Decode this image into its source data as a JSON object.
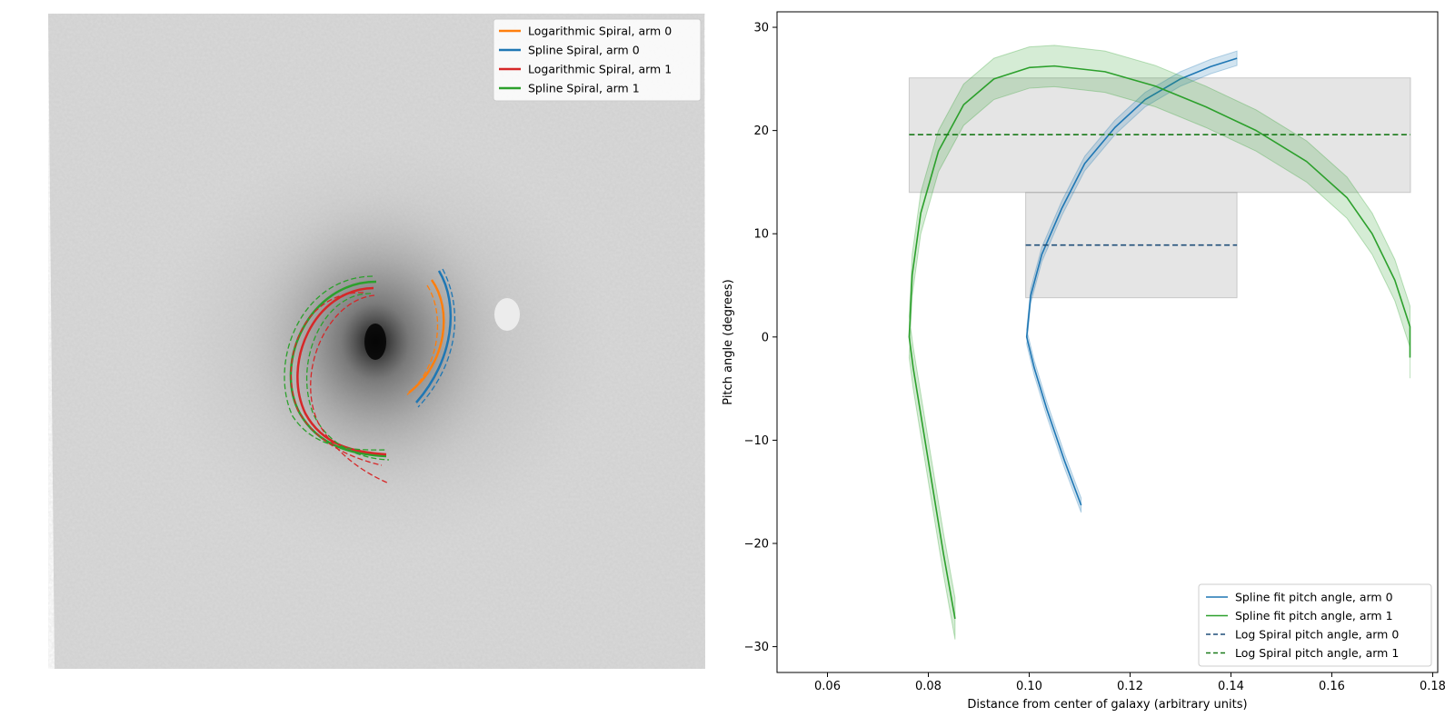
{
  "chart_data": [
    {
      "type": "image-overlay",
      "subject": "galaxy-grayscale-image",
      "legend": {
        "placement": "top-right",
        "entries": [
          {
            "label": "Logarithmic Spiral, arm 0",
            "color": "#ff7f0e"
          },
          {
            "label": "Spline Spiral, arm 0",
            "color": "#1f77b4"
          },
          {
            "label": "Logarithmic Spiral, arm 1",
            "color": "#d62728"
          },
          {
            "label": "Spline Spiral, arm 1",
            "color": "#2ca02c"
          }
        ]
      }
    },
    {
      "type": "line",
      "xlabel": "Distance from center of galaxy (arbitrary units)",
      "ylabel": "Pitch angle (degrees)",
      "xlim": [
        0.05,
        0.181
      ],
      "ylim": [
        -32.5,
        31.5
      ],
      "xticks": [
        "0.06",
        "0.08",
        "0.10",
        "0.12",
        "0.14",
        "0.16",
        "0.18"
      ],
      "xtick_values": [
        0.06,
        0.08,
        0.1,
        0.12,
        0.14,
        0.16,
        0.18
      ],
      "yticks": [
        "−30",
        "−20",
        "−10",
        "0",
        "10",
        "20",
        "30"
      ],
      "ytick_values": [
        -30,
        -20,
        -10,
        0,
        10,
        20,
        30
      ],
      "grid": false,
      "legend": {
        "placement": "lower-right",
        "entries": [
          {
            "label": "Spline fit pitch angle, arm 0",
            "color": "#1f77b4",
            "style": "solid"
          },
          {
            "label": "Spline fit pitch angle, arm 1",
            "color": "#2ca02c",
            "style": "solid"
          },
          {
            "label": "Log Spiral pitch angle, arm 0",
            "color": "#1f4e79",
            "style": "dashed"
          },
          {
            "label": "Log Spiral pitch angle, arm 1",
            "color": "#1a7a1a",
            "style": "dashed"
          }
        ]
      },
      "series": [
        {
          "name": "Spline fit pitch angle, arm 0",
          "color": "#1f77b4",
          "band": 0.7,
          "points": [
            [
              0.1103,
              -16.3
            ],
            [
              0.107,
              -12
            ],
            [
              0.1035,
              -7
            ],
            [
              0.101,
              -3
            ],
            [
              0.0995,
              0
            ],
            [
              0.1003,
              4
            ],
            [
              0.1025,
              8
            ],
            [
              0.1065,
              12.5
            ],
            [
              0.111,
              16.8
            ],
            [
              0.117,
              20.3
            ],
            [
              0.123,
              23
            ],
            [
              0.13,
              25
            ],
            [
              0.136,
              26.2
            ],
            [
              0.1412,
              27
            ]
          ]
        },
        {
          "name": "Spline fit pitch angle, arm 1",
          "color": "#2ca02c",
          "band": 2,
          "points": [
            [
              0.0853,
              -27.3
            ],
            [
              0.083,
              -21
            ],
            [
              0.081,
              -15
            ],
            [
              0.079,
              -9
            ],
            [
              0.077,
              -3
            ],
            [
              0.0762,
              0
            ],
            [
              0.0768,
              6
            ],
            [
              0.0785,
              12
            ],
            [
              0.082,
              18
            ],
            [
              0.087,
              22.5
            ],
            [
              0.093,
              25
            ],
            [
              0.1,
              26.1
            ],
            [
              0.105,
              26.25
            ],
            [
              0.115,
              25.7
            ],
            [
              0.125,
              24.3
            ],
            [
              0.135,
              22.3
            ],
            [
              0.145,
              20
            ],
            [
              0.155,
              17
            ],
            [
              0.163,
              13.5
            ],
            [
              0.168,
              10
            ],
            [
              0.1725,
              5.5
            ],
            [
              0.1755,
              1
            ],
            [
              0.1755,
              -2
            ]
          ]
        },
        {
          "name": "Log Spiral pitch angle, arm 0",
          "color": "#1f4e79",
          "value": 8.9,
          "x_range": [
            0.0993,
            0.1412
          ],
          "band_range": [
            3.8,
            14.0
          ]
        },
        {
          "name": "Log Spiral pitch angle, arm 1",
          "color": "#1a7a1a",
          "value": 19.6,
          "x_range": [
            0.0762,
            0.1756
          ],
          "band_range": [
            14.0,
            25.1
          ]
        }
      ]
    }
  ]
}
